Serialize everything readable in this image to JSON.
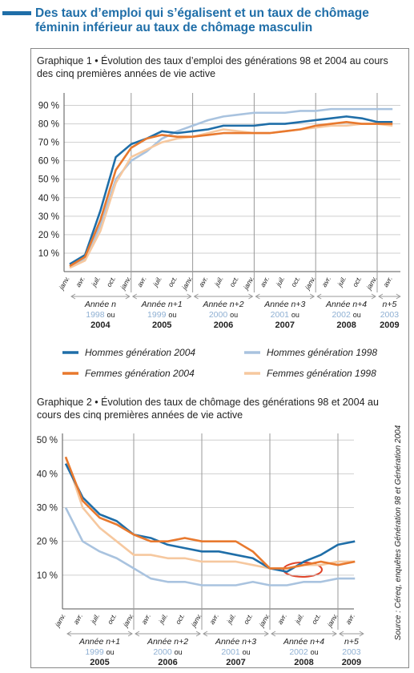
{
  "header": {
    "title": "Des taux d’emploi qui s’égalisent et un taux de chômage féminin inférieur au taux de chômage masculin"
  },
  "source": "Source : Céreq, enquêtes Génération 98 et Génération 2004",
  "chart_data": [
    {
      "type": "line",
      "title": "Graphique 1 • Évolution des taux d’emploi des générations 98 et 2004 au cours des cinq premières années de vie active",
      "categories": [
        "janv.",
        "avr.",
        "juil.",
        "oct.",
        "janv.",
        "avr.",
        "juil.",
        "oct.",
        "janv.",
        "avr.",
        "juil.",
        "oct.",
        "janv.",
        "avr.",
        "juil.",
        "oct.",
        "janv.",
        "avr.",
        "juil.",
        "oct.",
        "janv.",
        "avr."
      ],
      "periods": [
        {
          "label": "Année n",
          "alt_year": "1998",
          "sep": "ou",
          "year": "2004"
        },
        {
          "label": "Année n+1",
          "alt_year": "1999",
          "sep": "ou",
          "year": "2005"
        },
        {
          "label": "Année n+2",
          "alt_year": "2000",
          "sep": "ou",
          "year": "2006"
        },
        {
          "label": "Année n+3",
          "alt_year": "2001",
          "sep": "ou",
          "year": "2007"
        },
        {
          "label": "Année n+4",
          "alt_year": "2002",
          "sep": "ou",
          "year": "2008"
        },
        {
          "label": "n+5",
          "alt_year": "2003",
          "year": "2009"
        }
      ],
      "ylim": [
        0,
        95
      ],
      "yticks": [
        {
          "value": 10,
          "label": "10 %"
        },
        {
          "value": 20,
          "label": "20 %"
        },
        {
          "value": 30,
          "label": "30 %"
        },
        {
          "value": 40,
          "label": "40 %"
        },
        {
          "value": 50,
          "label": "50 %"
        },
        {
          "value": 60,
          "label": "60 %"
        },
        {
          "value": 70,
          "label": "70 %"
        },
        {
          "value": 80,
          "label": "80 %"
        },
        {
          "value": 90,
          "label": "90 %"
        }
      ],
      "grid": true,
      "series": [
        {
          "name": "Hommes génération 1998",
          "color": "#a9c3df",
          "values": [
            3,
            7,
            25,
            50,
            60,
            65,
            72,
            76,
            79,
            82,
            84,
            85,
            86,
            86,
            86,
            87,
            87,
            88,
            88,
            88,
            88,
            88
          ]
        },
        {
          "name": "Femmes génération 1998",
          "color": "#f6c89f",
          "values": [
            2,
            6,
            22,
            48,
            62,
            66,
            70,
            72,
            73,
            75,
            77,
            76,
            75,
            75,
            76,
            77,
            78,
            79,
            79,
            80,
            80,
            79
          ]
        },
        {
          "name": "Hommes génération 2004",
          "color": "#1f6ea8",
          "values": [
            4,
            9,
            33,
            62,
            69,
            72,
            76,
            75,
            76,
            77,
            79,
            79,
            79,
            80,
            80,
            81,
            82,
            83,
            84,
            83,
            81,
            81
          ]
        },
        {
          "name": "Femmes génération 2004",
          "color": "#e8792e",
          "values": [
            3,
            8,
            28,
            55,
            67,
            72,
            74,
            73,
            73,
            74,
            75,
            75,
            75,
            75,
            76,
            77,
            79,
            80,
            81,
            80,
            80,
            80
          ]
        }
      ]
    },
    {
      "type": "line",
      "title": "Graphique 2 • Évolution des taux de chômage des générations 98 et 2004 au cours des cinq premières années de vie active",
      "categories": [
        "janv.",
        "avr.",
        "juil.",
        "oct.",
        "janv.",
        "avr.",
        "juil.",
        "oct.",
        "janv.",
        "avr.",
        "juil.",
        "oct.",
        "janv.",
        "avr.",
        "juil.",
        "oct.",
        "janv.",
        "avr."
      ],
      "periods": [
        {
          "label": "Année n+1",
          "alt_year": "1999",
          "sep": "ou",
          "year": "2005"
        },
        {
          "label": "Année n+2",
          "alt_year": "2000",
          "sep": "ou",
          "year": "2006"
        },
        {
          "label": "Année n+3",
          "alt_year": "2001",
          "sep": "ou",
          "year": "2007"
        },
        {
          "label": "Année n+4",
          "alt_year": "2002",
          "sep": "ou",
          "year": "2008"
        },
        {
          "label": "n+5",
          "alt_year": "2003",
          "year": "2009"
        }
      ],
      "ylim": [
        0,
        51
      ],
      "yticks": [
        {
          "value": 10,
          "label": "10 %"
        },
        {
          "value": 20,
          "label": "20 %"
        },
        {
          "value": 30,
          "label": "30 %"
        },
        {
          "value": 40,
          "label": "40 %"
        },
        {
          "value": 50,
          "label": "50 %"
        }
      ],
      "grid": true,
      "series": [
        {
          "color": "#a9c3df",
          "values": [
            30,
            20,
            17,
            15,
            12,
            9,
            8,
            8,
            7,
            7,
            7,
            8,
            7,
            7,
            8,
            8,
            9,
            9
          ]
        },
        {
          "color": "#f6c89f",
          "values": [
            45,
            30,
            24,
            20,
            16,
            16,
            15,
            15,
            14,
            14,
            14,
            13,
            12,
            12,
            13,
            13,
            14,
            14
          ]
        },
        {
          "color": "#1f6ea8",
          "values": [
            43,
            33,
            28,
            26,
            22,
            21,
            19,
            18,
            17,
            17,
            16,
            15,
            12,
            11,
            14,
            16,
            19,
            20
          ]
        },
        {
          "color": "#e8792e",
          "values": [
            45,
            32,
            27,
            25,
            22,
            20,
            20,
            21,
            20,
            20,
            20,
            17,
            12,
            12,
            13,
            14,
            13,
            14
          ]
        }
      ]
    }
  ]
}
